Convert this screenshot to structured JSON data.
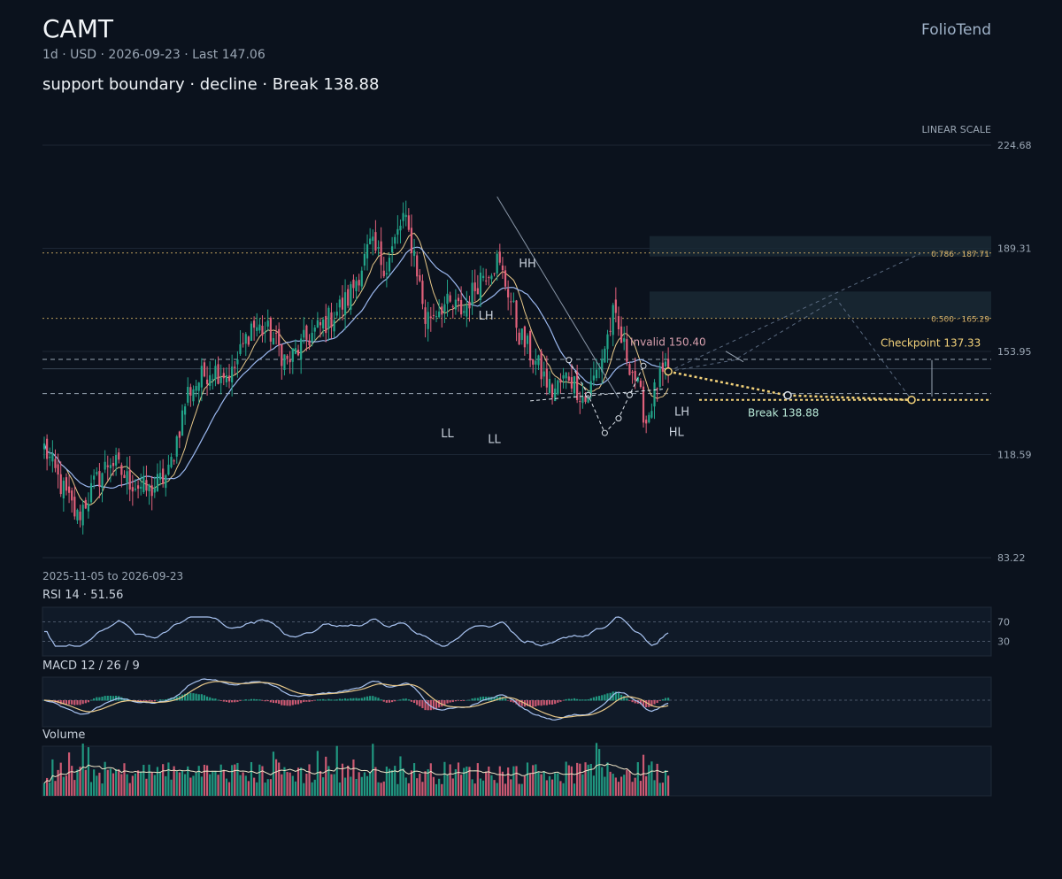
{
  "header": {
    "ticker": "CAMT",
    "meta": "1d · USD · 2026-09-23 · Last 147.06",
    "headline": "support boundary · decline · Break 138.88",
    "brand": "FolioTend"
  },
  "colors": {
    "background": "#0b121d",
    "up": "#22a58a",
    "down": "#e0607a",
    "ma_fast": "#e9c98a",
    "ma_slow": "#9bb8ef",
    "accent": "#f3d27a",
    "grid": "#1c2634"
  },
  "chart_data": [
    {
      "type": "candlestick",
      "scale_label": "LINEAR SCALE",
      "range_label": "2025-11-05 to 2026-09-23",
      "y_ticks": [
        224.68,
        189.31,
        153.95,
        118.59,
        83.22
      ],
      "ylim": [
        83.22,
        224.68
      ],
      "x_range": [
        "2025-11-05",
        "2026-09-23"
      ],
      "bars": 227,
      "last": 147.06,
      "anchors": [
        [
          0,
          121
        ],
        [
          6,
          108
        ],
        [
          12,
          97
        ],
        [
          18,
          108
        ],
        [
          24,
          117
        ],
        [
          30,
          110
        ],
        [
          38,
          106
        ],
        [
          45,
          112
        ],
        [
          52,
          140
        ],
        [
          60,
          148
        ],
        [
          68,
          146
        ],
        [
          75,
          163
        ],
        [
          82,
          160
        ],
        [
          88,
          150
        ],
        [
          95,
          158
        ],
        [
          102,
          164
        ],
        [
          110,
          172
        ],
        [
          118,
          190
        ],
        [
          124,
          183
        ],
        [
          130,
          200
        ],
        [
          134,
          188
        ],
        [
          138,
          165
        ],
        [
          144,
          170
        ],
        [
          152,
          168
        ],
        [
          158,
          180
        ],
        [
          164,
          185
        ],
        [
          168,
          175
        ],
        [
          172,
          160
        ],
        [
          178,
          150
        ],
        [
          184,
          140
        ],
        [
          190,
          146
        ],
        [
          196,
          137
        ],
        [
          202,
          152
        ],
        [
          206,
          166
        ],
        [
          210,
          155
        ],
        [
          214,
          145
        ],
        [
          218,
          130
        ],
        [
          222,
          143
        ],
        [
          226,
          147.06
        ]
      ],
      "levels": [
        {
          "value": 187.71,
          "label": "0.786 · 187.71",
          "style": "fib"
        },
        {
          "value": 165.29,
          "label": "0.500 · 165.29",
          "style": "fib"
        },
        {
          "value": 151.2,
          "label": "",
          "style": "dash"
        },
        {
          "value": 148.0,
          "label": "",
          "style": "faint"
        },
        {
          "value": 139.5,
          "label": "",
          "style": "dash"
        }
      ],
      "zones": [
        {
          "from": 186.5,
          "to": 193.5
        },
        {
          "from": 165.3,
          "to": 174.5
        }
      ],
      "pivots": [
        {
          "label": "HH",
          "bar": 175,
          "value": 181,
          "pos": "above"
        },
        {
          "label": "LH",
          "bar": 160,
          "value": 163,
          "pos": "above"
        },
        {
          "label": "LL",
          "bar": 146,
          "value": 130,
          "pos": "below"
        },
        {
          "label": "LL",
          "bar": 163,
          "value": 128,
          "pos": "below"
        },
        {
          "label": "LH",
          "bar": 225,
          "value": 135,
          "pos": "right"
        },
        {
          "label": "HL",
          "bar": 223,
          "value": 128,
          "pos": "right"
        }
      ],
      "annotations": {
        "invalid": {
          "label": "Invalid 150.40",
          "value": 150.4
        },
        "checkpoint": {
          "label": "Checkpoint 137.33",
          "value": 137.33
        },
        "break": {
          "label": "Break 138.88",
          "value": 138.88
        }
      }
    },
    {
      "type": "line",
      "title": "RSI 14 · 51.56",
      "value": 51.56,
      "period": 14,
      "bands": [
        70,
        30
      ],
      "ylim": [
        0,
        100
      ]
    },
    {
      "type": "line",
      "title": "MACD 12 / 26 / 9",
      "params": [
        12,
        26,
        9
      ],
      "series": [
        "macd",
        "signal",
        "histogram"
      ]
    },
    {
      "type": "bar",
      "title": "Volume",
      "overlay": "moving-average"
    }
  ]
}
